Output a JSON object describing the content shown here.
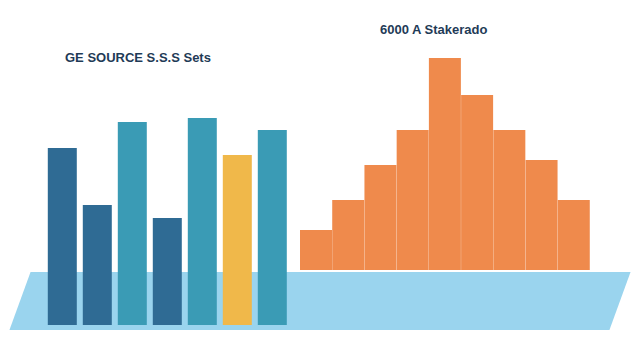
{
  "chart_data": [
    {
      "type": "bar",
      "title": "GE SOURCE S.S.S Sets",
      "categories": [
        null,
        null,
        null,
        null,
        null,
        null,
        null
      ],
      "values": [
        177,
        120,
        203,
        107,
        207,
        170,
        195
      ],
      "colors": [
        "#2f6b94",
        "#2f6b94",
        "#3a9bb5",
        "#2f6b94",
        "#3a9bb5",
        "#f0b84a",
        "#3a9bb5"
      ],
      "ylim": [
        0,
        220
      ],
      "tick_labels": false
    },
    {
      "type": "bar",
      "title": "6000 A Stakerado",
      "categories": [
        null,
        null,
        null,
        null,
        null,
        null,
        null,
        null,
        null
      ],
      "values": [
        40,
        70,
        105,
        140,
        212,
        175,
        140,
        110,
        70
      ],
      "color": "#ef8a4c",
      "ylim": [
        0,
        220
      ],
      "tick_labels": false
    }
  ]
}
